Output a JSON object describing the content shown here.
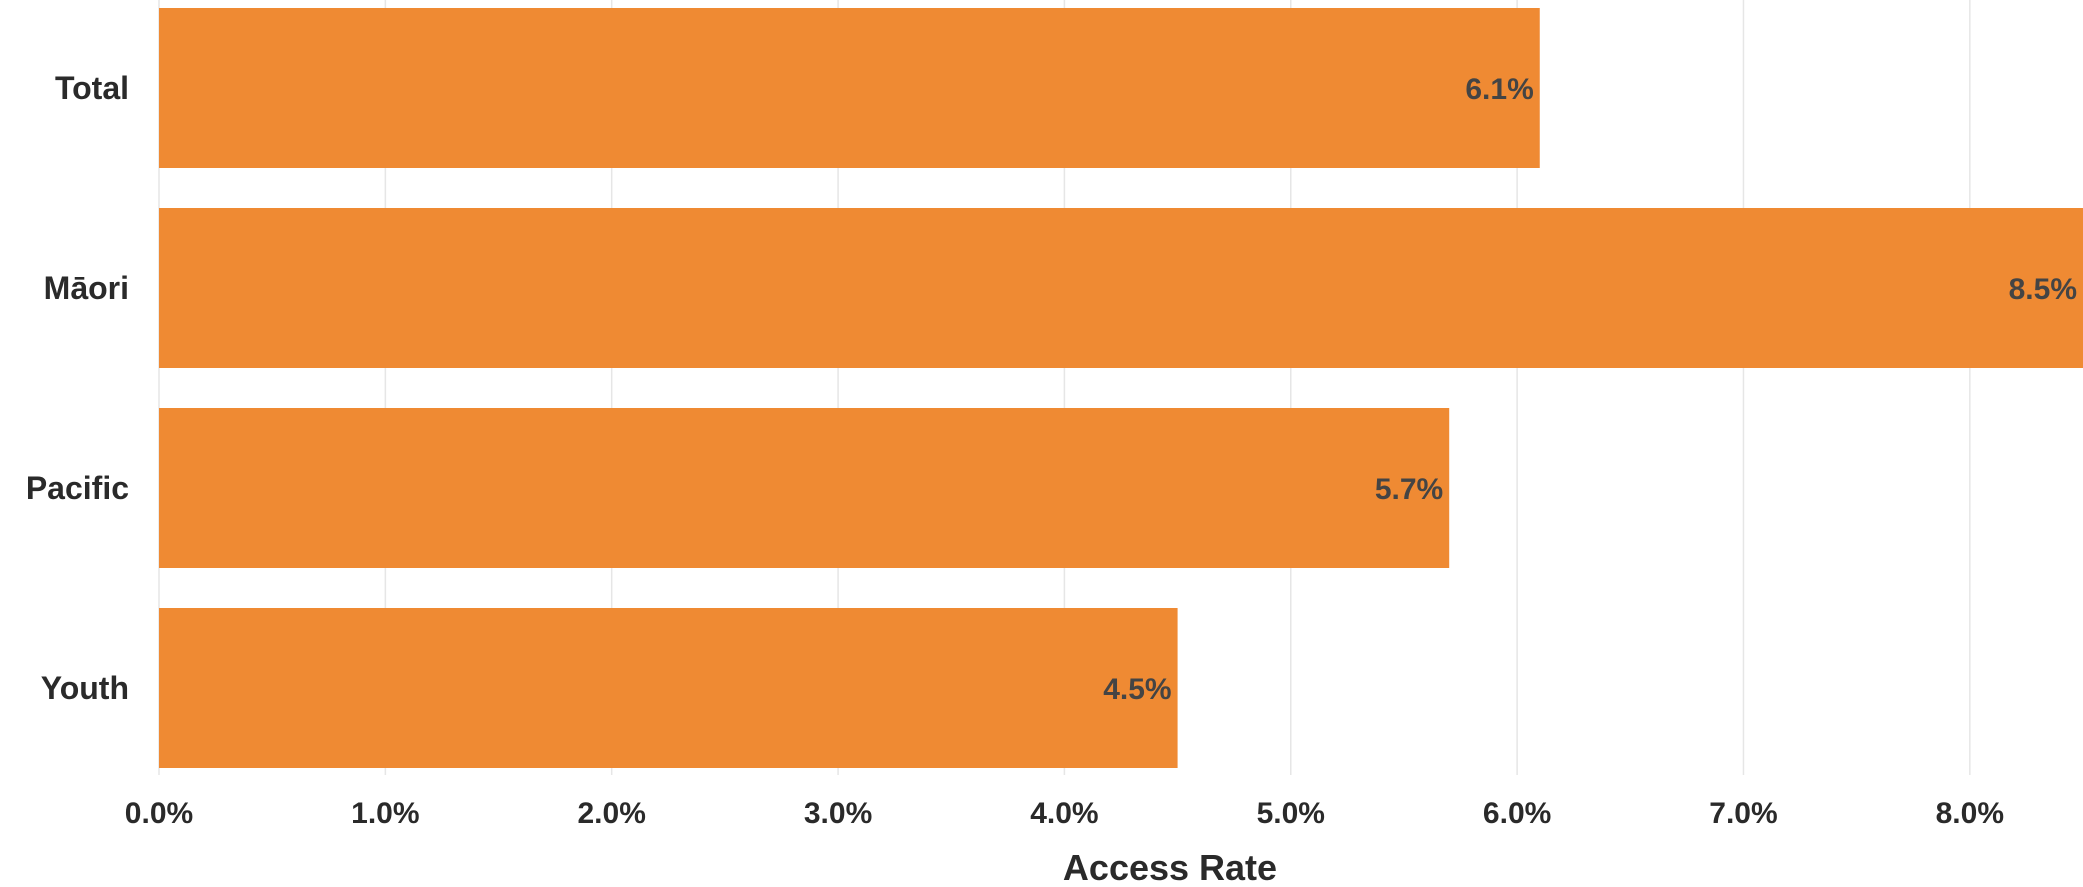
{
  "chart_data": {
    "type": "bar",
    "orientation": "horizontal",
    "categories": [
      "Total",
      "Māori",
      "Pacific",
      "Youth"
    ],
    "values": [
      6.1,
      8.5,
      5.7,
      4.5
    ],
    "value_labels": [
      "6.1%",
      "8.5%",
      "5.7%",
      "4.5%"
    ],
    "xlabel": "Access Rate",
    "ylabel": "",
    "xlim": [
      0,
      8.5
    ],
    "x_ticks": [
      0,
      1,
      2,
      3,
      4,
      5,
      6,
      7,
      8
    ],
    "x_tick_labels": [
      "0.0%",
      "1.0%",
      "2.0%",
      "3.0%",
      "4.0%",
      "5.0%",
      "6.0%",
      "7.0%",
      "8.0%"
    ],
    "grid": true,
    "legend": "none",
    "bar_color": "#ef8a33"
  }
}
